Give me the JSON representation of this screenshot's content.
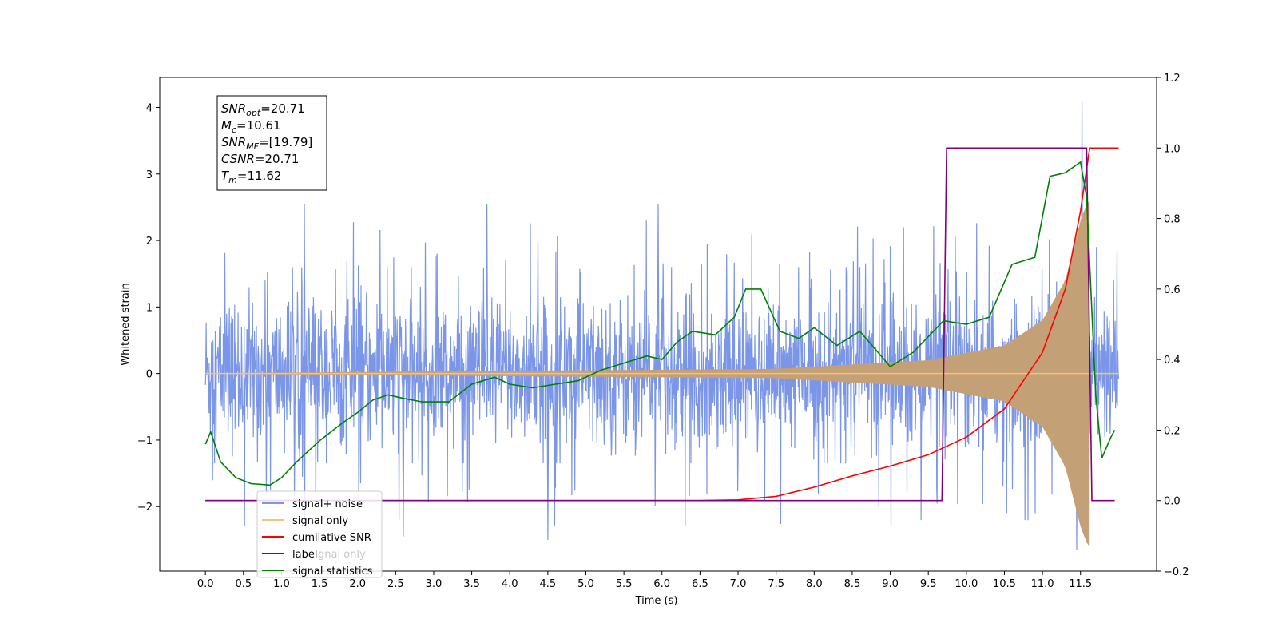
{
  "chart_data": {
    "type": "line",
    "xlabel": "Time (s)",
    "ylabel": "Whitened strain",
    "xlim": [
      -0.6,
      12.5
    ],
    "ylim": [
      -2.97,
      4.45
    ],
    "y2lim": [
      -0.2,
      1.2
    ],
    "x_ticks": [
      "0.0",
      "0.5",
      "1.0",
      "1.5",
      "2.0",
      "2.5",
      "3.0",
      "3.5",
      "4.0",
      "4.5",
      "5.0",
      "5.5",
      "6.0",
      "6.5",
      "7.0",
      "7.5",
      "8.0",
      "8.5",
      "9.0",
      "9.5",
      "10.0",
      "10.5",
      "11.0",
      "11.5"
    ],
    "y_ticks": [
      "−2",
      "−1",
      "0",
      "1",
      "2",
      "3",
      "4"
    ],
    "y2_ticks": [
      "−0.2",
      "0.0",
      "0.2",
      "0.4",
      "0.6",
      "0.8",
      "1.0",
      "1.2"
    ],
    "annotation": {
      "lines": [
        {
          "base": "SNR",
          "sub": "opt",
          "rest": "=20.71"
        },
        {
          "base": "M",
          "sub": "c",
          "rest": "=10.61"
        },
        {
          "base": "SNR",
          "sub": "MF",
          "rest": "=[19.79]"
        },
        {
          "base": "CSNR",
          "sub": "",
          "rest": "=20.71"
        },
        {
          "base": "T",
          "sub": "m",
          "rest": "=11.62"
        }
      ]
    },
    "legend": {
      "placement": "lower-left",
      "entries": [
        "signal+ noise",
        "signal only",
        "cumilative SNR",
        "label",
        "signal statistics"
      ],
      "hidden_text": "signal only"
    },
    "series": [
      {
        "name": "signal+ noise",
        "axis": "left",
        "color": "#7b96e8",
        "kind": "noise",
        "noise_band": [
          -1.35,
          1.6
        ],
        "x_range": [
          0.0,
          12.0
        ],
        "peaks": [
          [
            1.3,
            2.55
          ],
          [
            3.7,
            2.55
          ],
          [
            5.95,
            2.55
          ],
          [
            11.52,
            4.1
          ],
          [
            11.45,
            -2.65
          ],
          [
            4.5,
            -2.5
          ],
          [
            2.6,
            -2.45
          ]
        ]
      },
      {
        "name": "signal only",
        "axis": "left",
        "color": "#f5c27a",
        "kind": "chirp",
        "t_merge": 11.62,
        "amp_at": [
          [
            0.0,
            0.005
          ],
          [
            7.5,
            0.07
          ],
          [
            9.5,
            0.2
          ],
          [
            10.5,
            0.42
          ],
          [
            11.0,
            0.8
          ],
          [
            11.3,
            1.4
          ],
          [
            11.5,
            2.3
          ],
          [
            11.6,
            2.6
          ]
        ]
      },
      {
        "name": "cumilative SNR",
        "axis": "right",
        "color": "#ff0000",
        "points": [
          [
            0.0,
            0.0
          ],
          [
            6.5,
            0.0
          ],
          [
            7.0,
            0.002
          ],
          [
            7.5,
            0.012
          ],
          [
            8.0,
            0.038
          ],
          [
            8.5,
            0.07
          ],
          [
            9.0,
            0.098
          ],
          [
            9.5,
            0.13
          ],
          [
            10.0,
            0.18
          ],
          [
            10.5,
            0.26
          ],
          [
            11.0,
            0.42
          ],
          [
            11.3,
            0.6
          ],
          [
            11.5,
            0.82
          ],
          [
            11.62,
            1.0
          ],
          [
            12.0,
            1.0
          ]
        ]
      },
      {
        "name": "label",
        "axis": "right",
        "color": "#800080",
        "points": [
          [
            0.0,
            0.0
          ],
          [
            9.68,
            0.0
          ],
          [
            9.74,
            1.0
          ],
          [
            11.58,
            1.0
          ],
          [
            11.65,
            0.0
          ],
          [
            11.95,
            0.0
          ]
        ]
      },
      {
        "name": "signal statistics",
        "axis": "right",
        "color": "#008000",
        "points": [
          [
            0.0,
            0.16
          ],
          [
            0.07,
            0.195
          ],
          [
            0.2,
            0.11
          ],
          [
            0.4,
            0.065
          ],
          [
            0.6,
            0.048
          ],
          [
            0.85,
            0.044
          ],
          [
            1.0,
            0.065
          ],
          [
            1.2,
            0.11
          ],
          [
            1.5,
            0.17
          ],
          [
            1.8,
            0.22
          ],
          [
            2.0,
            0.25
          ],
          [
            2.2,
            0.285
          ],
          [
            2.4,
            0.3
          ],
          [
            2.6,
            0.29
          ],
          [
            2.85,
            0.28
          ],
          [
            3.2,
            0.28
          ],
          [
            3.5,
            0.33
          ],
          [
            3.8,
            0.35
          ],
          [
            4.0,
            0.33
          ],
          [
            4.3,
            0.32
          ],
          [
            4.6,
            0.33
          ],
          [
            4.9,
            0.34
          ],
          [
            5.2,
            0.37
          ],
          [
            5.5,
            0.39
          ],
          [
            5.8,
            0.41
          ],
          [
            6.0,
            0.4
          ],
          [
            6.2,
            0.45
          ],
          [
            6.4,
            0.48
          ],
          [
            6.7,
            0.47
          ],
          [
            6.95,
            0.52
          ],
          [
            7.1,
            0.6
          ],
          [
            7.3,
            0.6
          ],
          [
            7.55,
            0.48
          ],
          [
            7.8,
            0.46
          ],
          [
            8.0,
            0.49
          ],
          [
            8.3,
            0.44
          ],
          [
            8.6,
            0.48
          ],
          [
            8.8,
            0.43
          ],
          [
            9.0,
            0.38
          ],
          [
            9.3,
            0.42
          ],
          [
            9.7,
            0.51
          ],
          [
            10.0,
            0.5
          ],
          [
            10.3,
            0.52
          ],
          [
            10.6,
            0.67
          ],
          [
            10.9,
            0.69
          ],
          [
            11.1,
            0.92
          ],
          [
            11.3,
            0.93
          ],
          [
            11.5,
            0.96
          ],
          [
            11.58,
            0.86
          ],
          [
            11.7,
            0.3
          ],
          [
            11.78,
            0.12
          ],
          [
            11.9,
            0.18
          ],
          [
            11.95,
            0.2
          ]
        ]
      }
    ]
  }
}
